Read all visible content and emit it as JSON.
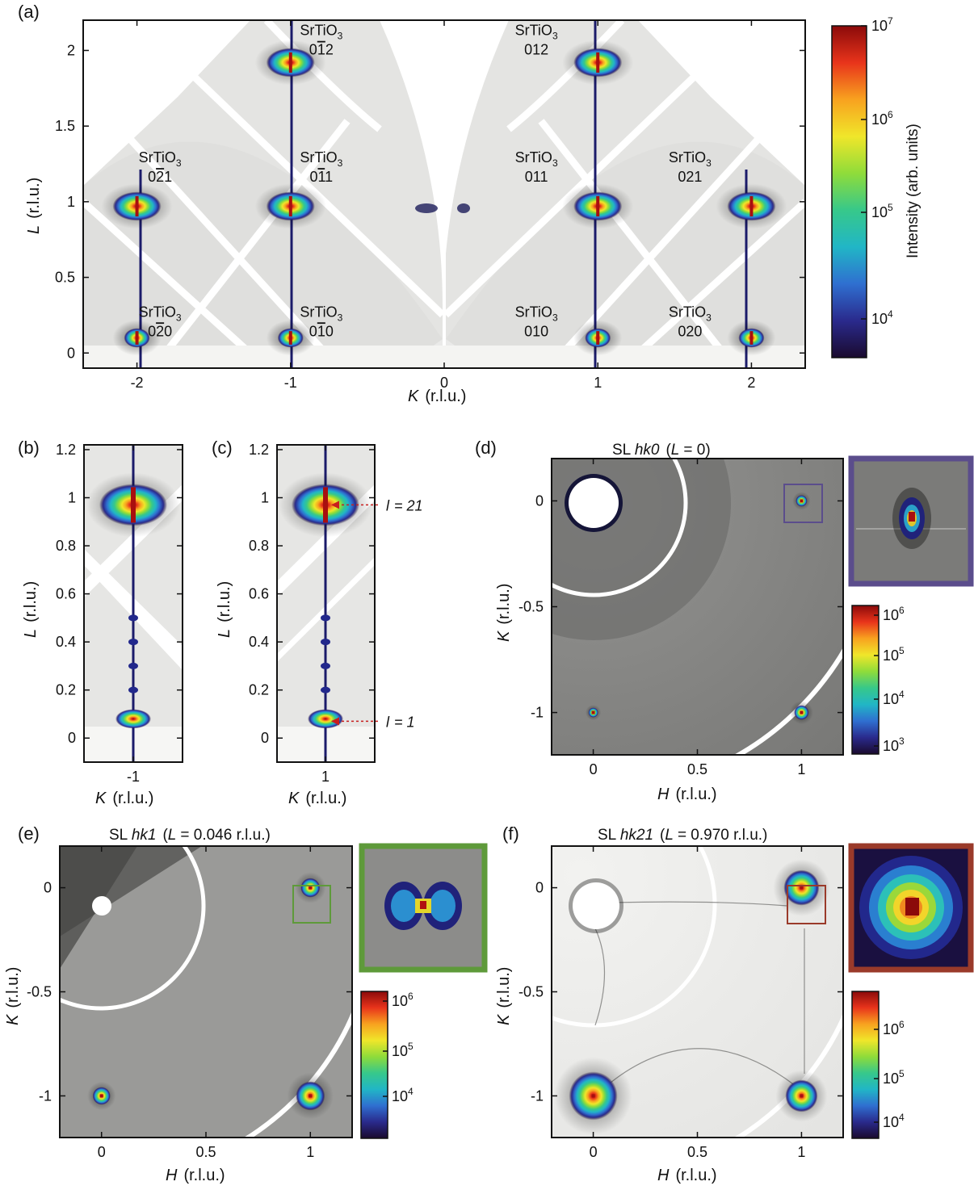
{
  "colors": {
    "background_light": "#e6e6e4",
    "background_dark": "#8a8a88",
    "gap": "#ffffff",
    "frame": "#111111",
    "box_d": "#5b4d8c",
    "box_e": "#5e9a3a",
    "box_f": "#9a3a2a",
    "arrow": "#c81e1e",
    "colormap": [
      "#1a0a2e",
      "#2a2a8c",
      "#2f6fd0",
      "#21b6c6",
      "#37c88a",
      "#8fdc3a",
      "#f0e62a",
      "#f8a21f",
      "#e8341b",
      "#8b0a0a"
    ]
  },
  "chart_data": [
    {
      "id": "a",
      "panel_label": "(a)",
      "type": "heatmap",
      "xlabel": "K",
      "xlabel_unit": "(r.l.u.)",
      "ylabel": "L",
      "ylabel_unit": "(r.l.u.)",
      "xlim": [
        -2.35,
        2.35
      ],
      "ylim": [
        -0.1,
        2.2
      ],
      "xticks": [
        "-2",
        "-1",
        "0",
        "1",
        "2"
      ],
      "yticks": [
        "0",
        "0.5",
        "1",
        "1.5",
        "2"
      ],
      "peaks": [
        {
          "k": -2,
          "l": 0.1
        },
        {
          "k": -1,
          "l": 0.1
        },
        {
          "k": 1,
          "l": 0.1
        },
        {
          "k": 2,
          "l": 0.1
        },
        {
          "k": -2,
          "l": 0.97
        },
        {
          "k": -1,
          "l": 0.97
        },
        {
          "k": 1,
          "l": 0.97
        },
        {
          "k": 2,
          "l": 0.97
        },
        {
          "k": -1,
          "l": 1.92
        },
        {
          "k": 1,
          "l": 1.92
        }
      ],
      "annotations": [
        {
          "k": -1.85,
          "l": 1.26,
          "line1": "SrTiO",
          "sub": "3",
          "line2": "0",
          "over": "2",
          "rest": "1"
        },
        {
          "k": -0.8,
          "l": 1.26,
          "line1": "SrTiO",
          "sub": "3",
          "line2": "0",
          "over": "1",
          "rest": "1"
        },
        {
          "k": 0.6,
          "l": 1.26,
          "line1": "SrTiO",
          "sub": "3",
          "line2": "011",
          "over": "",
          "rest": ""
        },
        {
          "k": 1.6,
          "l": 1.26,
          "line1": "SrTiO",
          "sub": "3",
          "line2": "021",
          "over": "",
          "rest": ""
        },
        {
          "k": -0.8,
          "l": 2.1,
          "line1": "SrTiO",
          "sub": "3",
          "line2": "0",
          "over": "1",
          "rest": "2"
        },
        {
          "k": 0.6,
          "l": 2.1,
          "line1": "SrTiO",
          "sub": "3",
          "line2": "012",
          "over": "",
          "rest": ""
        },
        {
          "k": -1.85,
          "l": 0.24,
          "line1": "SrTiO",
          "sub": "3",
          "line2": "0",
          "over": "2",
          "rest": "0"
        },
        {
          "k": -0.8,
          "l": 0.24,
          "line1": "SrTiO",
          "sub": "3",
          "line2": "0",
          "over": "1",
          "rest": "0"
        },
        {
          "k": 0.6,
          "l": 0.24,
          "line1": "SrTiO",
          "sub": "3",
          "line2": "010",
          "over": "",
          "rest": ""
        },
        {
          "k": 1.6,
          "l": 0.24,
          "line1": "SrTiO",
          "sub": "3",
          "line2": "020",
          "over": "",
          "rest": ""
        }
      ],
      "colorbar": {
        "label": "Intensity  (arb. units)",
        "scale": "log",
        "ticks": [
          {
            "base": "10",
            "exp": "7"
          },
          {
            "base": "10",
            "exp": "6"
          },
          {
            "base": "10",
            "exp": "5"
          },
          {
            "base": "10",
            "exp": "4"
          }
        ]
      }
    },
    {
      "id": "b",
      "panel_label": "(b)",
      "type": "heatmap",
      "xlabel": "K",
      "xlabel_unit": "(r.l.u.)",
      "ylabel": "L",
      "ylabel_unit": "(r.l.u.)",
      "xticks": [
        "-1"
      ],
      "yticks": [
        "0",
        "0.2",
        "0.4",
        "0.6",
        "0.8",
        "1",
        "1.2"
      ],
      "ylim": [
        -0.1,
        1.22
      ]
    },
    {
      "id": "c",
      "panel_label": "(c)",
      "type": "heatmap",
      "xlabel": "K",
      "xlabel_unit": "(r.l.u.)",
      "ylabel": "L",
      "ylabel_unit": "(r.l.u.)",
      "xticks": [
        "1"
      ],
      "yticks": [
        "0",
        "0.2",
        "0.4",
        "0.6",
        "0.8",
        "1",
        "1.2"
      ],
      "ylim": [
        -0.1,
        1.22
      ],
      "annotations": [
        {
          "text_var": "l",
          "text_val": "= 21",
          "l": 0.97
        },
        {
          "text_var": "l",
          "text_val": "= 1",
          "l": 0.07
        }
      ]
    },
    {
      "id": "d",
      "panel_label": "(d)",
      "type": "heatmap",
      "title_prefix": "SL ",
      "title_italic": "hk0",
      "title_suffix_var": "L",
      "title_suffix": "= 0)",
      "xlabel": "H",
      "xlabel_unit": "(r.l.u.)",
      "ylabel": "K",
      "ylabel_unit": "(r.l.u.)",
      "xticks": [
        "0",
        "0.5",
        "1"
      ],
      "yticks": [
        "0",
        "-0.5",
        "-1"
      ],
      "xlim": [
        -0.2,
        1.2
      ],
      "ylim": [
        -1.2,
        0.2
      ],
      "colorbar": {
        "ticks": [
          {
            "base": "10",
            "exp": "6"
          },
          {
            "base": "10",
            "exp": "5"
          },
          {
            "base": "10",
            "exp": "4"
          },
          {
            "base": "10",
            "exp": "3"
          }
        ]
      }
    },
    {
      "id": "e",
      "panel_label": "(e)",
      "type": "heatmap",
      "title_prefix": "SL ",
      "title_italic": "hk1",
      "title_suffix_var": "L",
      "title_suffix": "= 0.046 r.l.u.)",
      "xlabel": "H",
      "xlabel_unit": "(r.l.u.)",
      "ylabel": "K",
      "ylabel_unit": "(r.l.u.)",
      "xticks": [
        "0",
        "0.5",
        "1"
      ],
      "yticks": [
        "0",
        "-0.5",
        "-1"
      ],
      "xlim": [
        -0.2,
        1.2
      ],
      "ylim": [
        -1.2,
        0.2
      ],
      "colorbar": {
        "ticks": [
          {
            "base": "10",
            "exp": "6"
          },
          {
            "base": "10",
            "exp": "5"
          },
          {
            "base": "10",
            "exp": "4"
          }
        ]
      }
    },
    {
      "id": "f",
      "panel_label": "(f)",
      "type": "heatmap",
      "title_prefix": "SL ",
      "title_italic": "hk21",
      "title_suffix_var": "L",
      "title_suffix": "= 0.970 r.l.u.)",
      "xlabel": "H",
      "xlabel_unit": "(r.l.u.)",
      "ylabel": "K",
      "ylabel_unit": "(r.l.u.)",
      "xticks": [
        "0",
        "0.5",
        "1"
      ],
      "yticks": [
        "0",
        "-0.5",
        "-1"
      ],
      "xlim": [
        -0.2,
        1.2
      ],
      "ylim": [
        -1.2,
        0.2
      ],
      "colorbar": {
        "ticks": [
          {
            "base": "10",
            "exp": "6"
          },
          {
            "base": "10",
            "exp": "5"
          },
          {
            "base": "10",
            "exp": "4"
          }
        ]
      }
    }
  ]
}
